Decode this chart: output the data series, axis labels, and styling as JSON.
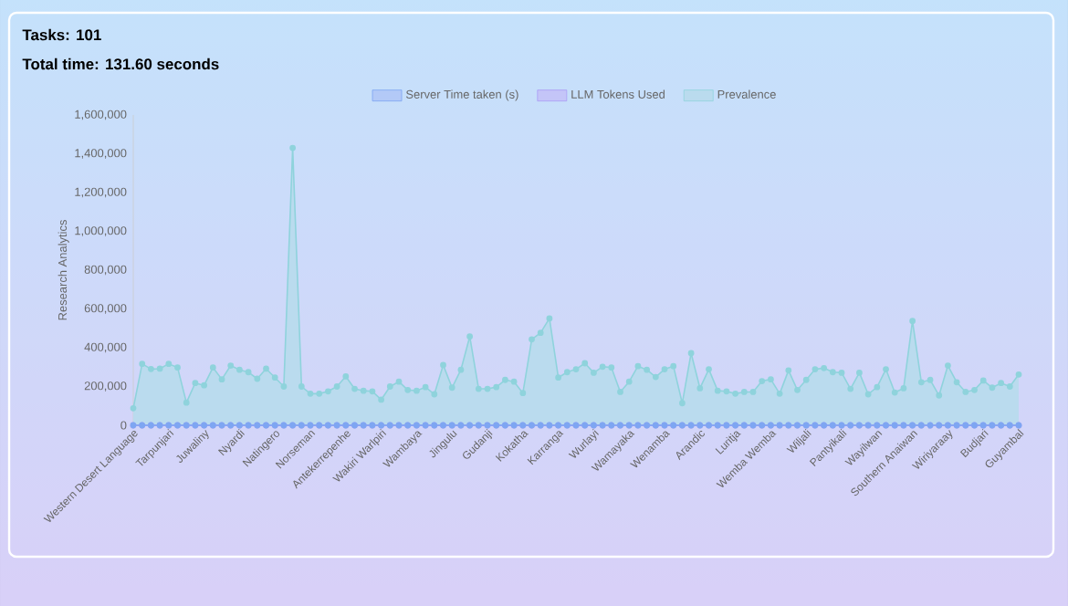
{
  "chart_data": {
    "type": "area",
    "title": "Tasks: 101",
    "subtitle": "Total time: 131.60 seconds",
    "ylabel": "Research Analytics",
    "categories": [
      "Western Desert Language",
      null,
      null,
      null,
      "Tarpunjari",
      null,
      null,
      null,
      "Juwaliny",
      null,
      null,
      null,
      "Nyardi",
      null,
      null,
      null,
      "Natingero",
      null,
      null,
      null,
      "Norseman",
      null,
      null,
      null,
      "Antekerrepenhe",
      null,
      null,
      null,
      "Wakiri Warlpiri",
      null,
      null,
      null,
      "Wambaya",
      null,
      null,
      null,
      "Jingulu",
      null,
      null,
      null,
      "Gudanji",
      null,
      null,
      null,
      "Kokatha",
      null,
      null,
      null,
      "Karranga",
      null,
      null,
      null,
      "Wurlayi",
      null,
      null,
      null,
      "Wamayaka",
      null,
      null,
      null,
      "Wenamba",
      null,
      null,
      null,
      "Arandic",
      null,
      null,
      null,
      "Luritja",
      null,
      null,
      null,
      "Wemba Wemba",
      null,
      null,
      null,
      "Wiljali",
      null,
      null,
      null,
      "Pantyikali",
      null,
      null,
      null,
      "Wayilwan",
      null,
      null,
      null,
      "Southern Anaiwan",
      null,
      null,
      null,
      "Wiriyaraay",
      null,
      null,
      null,
      "Budjari",
      null,
      null,
      null,
      "Guyambal"
    ],
    "series": [
      {
        "name": "Server Time taken (s)",
        "type": "line",
        "color": "#7ea6f2",
        "values": [
          0,
          0,
          0,
          0,
          0,
          0,
          0,
          0,
          0,
          0,
          0,
          0,
          0,
          0,
          0,
          0,
          0,
          0,
          0,
          0,
          0,
          0,
          0,
          0,
          0,
          0,
          0,
          0,
          0,
          0,
          0,
          0,
          0,
          0,
          0,
          0,
          0,
          0,
          0,
          0,
          0,
          0,
          0,
          0,
          0,
          0,
          0,
          0,
          0,
          0,
          0,
          0,
          0,
          0,
          0,
          0,
          0,
          0,
          0,
          0,
          0,
          0,
          0,
          0,
          0,
          0,
          0,
          0,
          0,
          0,
          0,
          0,
          0,
          0,
          0,
          0,
          0,
          0,
          0,
          0,
          0,
          0,
          0,
          0,
          0,
          0,
          0,
          0,
          0,
          0,
          0,
          0,
          0,
          0,
          0,
          0,
          0,
          0,
          0,
          0,
          0
        ]
      },
      {
        "name": "LLM Tokens Used",
        "type": "line",
        "color": "#a99cf5",
        "values": [
          0,
          0,
          0,
          0,
          0,
          0,
          0,
          0,
          0,
          0,
          0,
          0,
          0,
          0,
          0,
          0,
          0,
          0,
          0,
          0,
          0,
          0,
          0,
          0,
          0,
          0,
          0,
          0,
          0,
          0,
          0,
          0,
          0,
          0,
          0,
          0,
          0,
          0,
          0,
          0,
          0,
          0,
          0,
          0,
          0,
          0,
          0,
          0,
          0,
          0,
          0,
          0,
          0,
          0,
          0,
          0,
          0,
          0,
          0,
          0,
          0,
          0,
          0,
          0,
          0,
          0,
          0,
          0,
          0,
          0,
          0,
          0,
          0,
          0,
          0,
          0,
          0,
          0,
          0,
          0,
          0,
          0,
          0,
          0,
          0,
          0,
          0,
          0,
          0,
          0,
          0,
          0,
          0,
          0,
          0,
          0,
          0,
          0,
          0,
          0,
          0
        ]
      },
      {
        "name": "Prevalence",
        "color": "#8fd3dc",
        "values": [
          88000,
          317000,
          290000,
          292000,
          317000,
          298000,
          117000,
          218000,
          206000,
          298000,
          237000,
          308000,
          286000,
          274000,
          240000,
          292000,
          246000,
          200000,
          1430000,
          200000,
          163000,
          163000,
          175000,
          200000,
          252000,
          188000,
          178000,
          175000,
          132000,
          200000,
          225000,
          182000,
          178000,
          197000,
          160000,
          311000,
          194000,
          286000,
          458000,
          188000,
          188000,
          197000,
          234000,
          225000,
          166000,
          443000,
          477000,
          551000,
          246000,
          274000,
          289000,
          320000,
          271000,
          302000,
          298000,
          172000,
          225000,
          305000,
          286000,
          249000,
          289000,
          305000,
          114000,
          372000,
          191000,
          289000,
          178000,
          175000,
          163000,
          172000,
          172000,
          228000,
          237000,
          163000,
          283000,
          182000,
          234000,
          289000,
          295000,
          274000,
          271000,
          188000,
          271000,
          160000,
          197000,
          289000,
          169000,
          191000,
          538000,
          222000,
          234000,
          154000,
          308000,
          222000,
          172000,
          182000,
          231000,
          194000,
          218000,
          200000,
          262000
        ]
      }
    ],
    "ylim": [
      0,
      1600000
    ],
    "yticks": [
      {
        "value": 0,
        "label": "0"
      },
      {
        "value": 200000,
        "label": "200,000"
      },
      {
        "value": 400000,
        "label": "400,000"
      },
      {
        "value": 600000,
        "label": "600,000"
      },
      {
        "value": 800000,
        "label": "800,000"
      },
      {
        "value": 1000000,
        "label": "1,000,000"
      },
      {
        "value": 1200000,
        "label": "1,200,000"
      },
      {
        "value": 1400000,
        "label": "1,400,000"
      },
      {
        "value": 1600000,
        "label": "1,600,000"
      }
    ],
    "legend": "top",
    "marker": "circle",
    "grid": false
  }
}
